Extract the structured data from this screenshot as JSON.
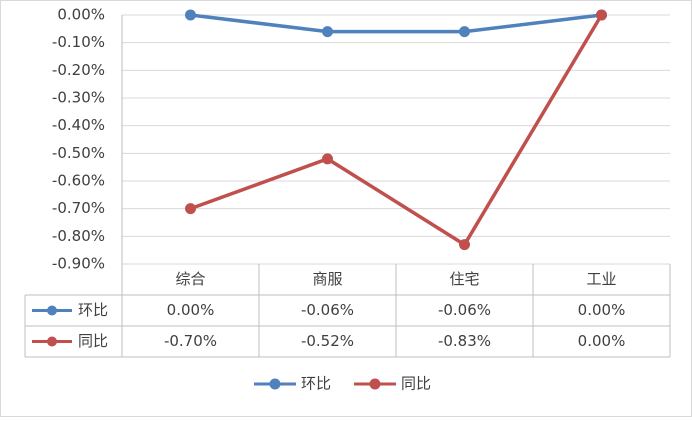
{
  "chart_data": {
    "type": "line",
    "categories": [
      "综合",
      "商服",
      "住宅",
      "工业"
    ],
    "series": [
      {
        "name": "环比",
        "color": "#4f81bd",
        "values": [
          0,
          -0.06,
          -0.06,
          0
        ],
        "value_labels": [
          "0.00%",
          "-0.06%",
          "-0.06%",
          "0.00%"
        ]
      },
      {
        "name": "同比",
        "color": "#c0504d",
        "values": [
          -0.7,
          -0.52,
          -0.83,
          0
        ],
        "value_labels": [
          "-0.70%",
          "-0.52%",
          "-0.83%",
          "0.00%"
        ]
      }
    ],
    "ylim": [
      -0.9,
      0
    ],
    "yticks": [
      {
        "value": 0,
        "label": "0.00%"
      },
      {
        "value": -0.1,
        "label": "-0.10%"
      },
      {
        "value": -0.2,
        "label": "-0.20%"
      },
      {
        "value": -0.3,
        "label": "-0.30%"
      },
      {
        "value": -0.4,
        "label": "-0.40%"
      },
      {
        "value": -0.5,
        "label": "-0.50%"
      },
      {
        "value": -0.6,
        "label": "-0.60%"
      },
      {
        "value": -0.7,
        "label": "-0.70%"
      },
      {
        "value": -0.8,
        "label": "-0.80%"
      },
      {
        "value": -0.9,
        "label": "-0.90%"
      }
    ],
    "grid": true,
    "legend": "bottom",
    "data_table": true
  }
}
